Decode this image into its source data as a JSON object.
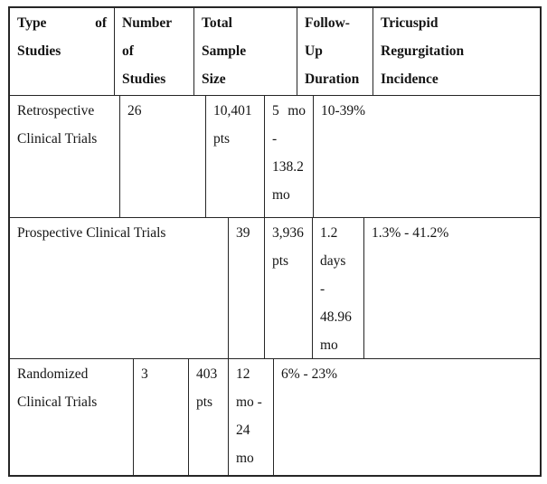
{
  "colors": {
    "background": "#ffffff",
    "border": "#262626",
    "text": "#141414"
  },
  "table": {
    "header": [
      {
        "label": "Type of Studies",
        "lines": [
          "Type of",
          "Studies"
        ]
      },
      {
        "label": "Number of Studies",
        "lines": [
          "Number",
          "of",
          "Studies"
        ]
      },
      {
        "label": "Total Sample Size",
        "lines": [
          "Total",
          "Sample",
          "Size"
        ]
      },
      {
        "label": "Follow-Up Duration",
        "lines": [
          "Follow-",
          "Up",
          "Duration"
        ]
      },
      {
        "label": "Tricuspid Regurgitation Incidence",
        "lines": [
          "Tricuspid",
          "Regurgitation",
          "Incidence"
        ]
      }
    ],
    "rows": [
      {
        "type_of_studies": "Retrospective Clinical Trials",
        "number_of_studies": "26",
        "total_sample_size": "10,401 pts",
        "follow_up_duration": "5 mo - 138.2 mo",
        "incidence": "10-39%",
        "cells": [
          {
            "lines": [
              "Retrospective",
              "Clinical Trials"
            ]
          },
          {
            "lines": [
              "26"
            ]
          },
          {
            "lines": [
              "10,401",
              "pts"
            ]
          },
          {
            "lines": [
              "5 mo",
              "-",
              "138.2",
              "mo"
            ]
          },
          {
            "lines": [
              "10-39%"
            ]
          }
        ]
      },
      {
        "type_of_studies": "Prospective Clinical Trials",
        "number_of_studies": "39",
        "total_sample_size": "3,936 pts",
        "follow_up_duration": "1.2 days - 48.96 mo",
        "incidence": "1.3% - 41.2%",
        "cells": [
          {
            "lines": [
              "Prospective Clinical Trials"
            ]
          },
          {
            "lines": [
              "39"
            ]
          },
          {
            "lines": [
              "3,936",
              "pts"
            ]
          },
          {
            "lines": [
              "1.2",
              "days",
              "-",
              "48.96",
              "mo"
            ]
          },
          {
            "lines": [
              "1.3% - 41.2%"
            ]
          }
        ]
      },
      {
        "type_of_studies": "Randomized Clinical Trials",
        "number_of_studies": "3",
        "total_sample_size": "403 pts",
        "follow_up_duration": "12 mo - 24 mo",
        "incidence": "6% - 23%",
        "cells": [
          {
            "lines": [
              "Randomized",
              "Clinical Trials"
            ]
          },
          {
            "lines": [
              "3"
            ]
          },
          {
            "lines": [
              "403",
              "pts"
            ]
          },
          {
            "lines": [
              "12",
              "mo -",
              "24",
              "mo"
            ]
          },
          {
            "lines": [
              "6% - 23%"
            ]
          }
        ]
      }
    ]
  }
}
